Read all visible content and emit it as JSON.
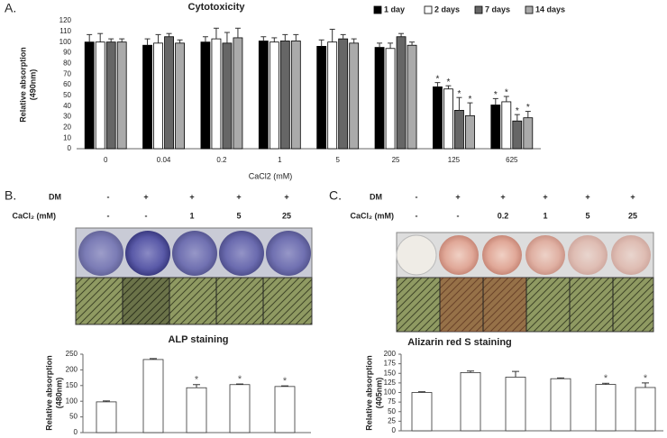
{
  "chart_data": [
    {
      "type": "bar",
      "panel_label": "A.",
      "title": "Cytotoxicity",
      "y_label": [
        "Relative absorption",
        "(490nm)"
      ],
      "x_label": "CaCl2 (mM)",
      "categories": [
        "0",
        "0.04",
        "0.2",
        "1",
        "5",
        "25",
        "125",
        "625"
      ],
      "ylim": [
        0,
        120
      ],
      "yticks": [
        0,
        10,
        20,
        30,
        40,
        50,
        60,
        70,
        80,
        90,
        100,
        110,
        120
      ],
      "grid": false,
      "legend": "top-right",
      "series": [
        {
          "name": "1 day",
          "color": "#000000",
          "values": [
            100,
            97,
            100,
            101,
            96,
            95,
            58,
            41
          ],
          "errors": [
            7,
            6,
            5,
            4,
            6,
            4,
            4,
            6
          ],
          "labels": [
            null,
            null,
            null,
            null,
            null,
            null,
            "*",
            "*"
          ]
        },
        {
          "name": "2 days",
          "color": "#ffffff",
          "values": [
            100,
            99,
            103,
            100,
            100,
            94,
            56,
            44
          ],
          "errors": [
            8,
            8,
            10,
            4,
            12,
            5,
            3,
            5
          ],
          "labels": [
            null,
            null,
            null,
            null,
            null,
            null,
            "*",
            "*"
          ]
        },
        {
          "name": "7 days",
          "color": "#666666",
          "values": [
            100,
            105,
            99,
            101,
            103,
            105,
            36,
            26
          ],
          "errors": [
            3,
            3,
            10,
            6,
            4,
            3,
            12,
            6
          ],
          "labels": [
            null,
            null,
            null,
            null,
            null,
            null,
            "*",
            "*"
          ]
        },
        {
          "name": "14 days",
          "color": "#aaaaaa",
          "values": [
            100,
            99,
            104,
            101,
            99,
            97,
            31,
            29
          ],
          "errors": [
            3,
            3,
            9,
            6,
            4,
            3,
            12,
            6
          ],
          "labels": [
            null,
            null,
            null,
            null,
            null,
            null,
            "*",
            "*"
          ]
        }
      ]
    },
    {
      "type": "bar",
      "panel_label": "B.",
      "title": "ALP staining",
      "y_label": [
        "Relative absorption",
        "(480nm)"
      ],
      "conditions": [
        {
          "label": "DM",
          "cells": [
            "-",
            "+",
            "+",
            "+",
            "+"
          ]
        },
        {
          "label": "CaCl₂ (mM)",
          "cells": [
            "-",
            "-",
            "1",
            "5",
            "25"
          ]
        }
      ],
      "ylim": [
        0,
        250
      ],
      "yticks": [
        0,
        50,
        100,
        150,
        200,
        250
      ],
      "grid": false,
      "color": "#ffffff",
      "values": [
        98,
        233,
        143,
        153,
        147
      ],
      "errors": [
        3,
        3,
        10,
        2,
        2
      ],
      "labels": [
        null,
        null,
        "*",
        "*",
        "*"
      ]
    },
    {
      "type": "bar",
      "panel_label": "C.",
      "title": "Alizarin red S staining",
      "y_label": [
        "Relative absorption",
        "(405nm)"
      ],
      "conditions": [
        {
          "label": "DM",
          "cells": [
            "-",
            "+",
            "+",
            "+",
            "+",
            "+"
          ]
        },
        {
          "label": "CaCl₂ (mM)",
          "cells": [
            "-",
            "-",
            "0.2",
            "1",
            "5",
            "25"
          ]
        }
      ],
      "ylim": [
        0,
        200
      ],
      "yticks": [
        0,
        25,
        50,
        75,
        100,
        125,
        150,
        175,
        200
      ],
      "grid": false,
      "color": "#ffffff",
      "values": [
        100,
        152,
        140,
        136,
        121,
        113
      ],
      "errors": [
        2,
        4,
        15,
        2,
        3,
        12
      ],
      "labels": [
        null,
        null,
        null,
        null,
        "*",
        "*"
      ]
    }
  ]
}
